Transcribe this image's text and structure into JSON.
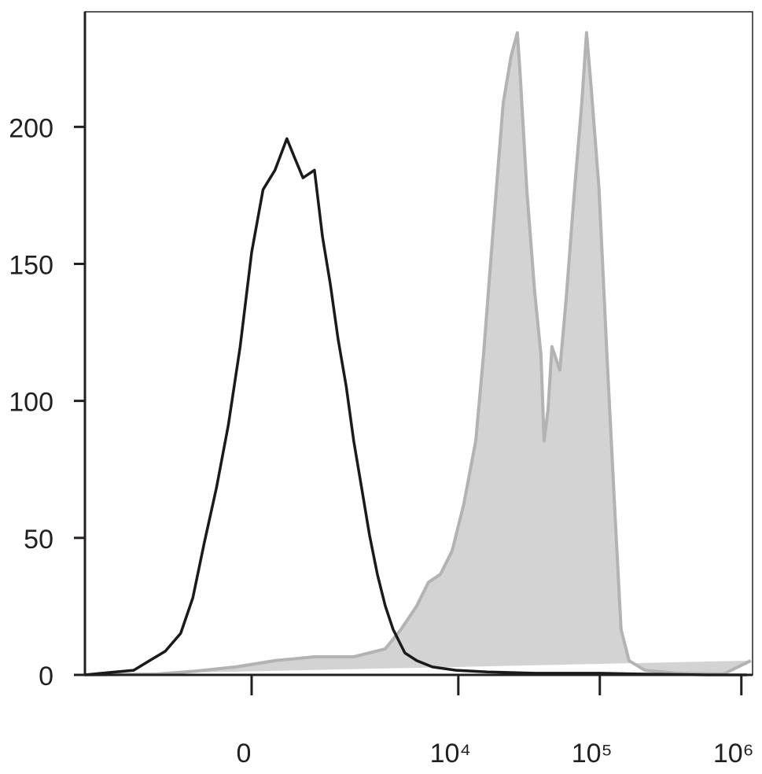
{
  "chart_data": {
    "type": "line",
    "xscale": "biexponential",
    "xlim": [
      -5200,
      1200000
    ],
    "xticks": [
      0,
      {
        "value": 10000,
        "label": "10⁴"
      },
      {
        "value": 100000,
        "label": "10⁵"
      },
      {
        "value": 1000000,
        "label": "10⁶"
      }
    ],
    "ylim": [
      0,
      242
    ],
    "yticks": [
      0,
      50,
      100,
      150,
      200
    ],
    "series": [
      {
        "color": "#b3b3b3",
        "fill": "#d3d3d3",
        "x": [
          -5200,
          -1540,
          -710,
          -180,
          270,
          840,
          1760,
          3010,
          3910,
          5070,
          6140,
          7460,
          9040,
          10950,
          13280,
          15090,
          17140,
          18750,
          20770,
          23600,
          26160,
          27520,
          30500,
          34660,
          38380,
          40390,
          43060,
          45910,
          52190,
          57780,
          65650,
          74610,
          80600,
          86980,
          98850,
          112350,
          127700,
          141400,
          160800,
          207700,
          346200,
          746300,
          1166700
        ],
        "values": [
          0,
          0.3,
          1.4,
          2.9,
          5.2,
          6.6,
          6.6,
          9.5,
          16.6,
          25.2,
          33.8,
          36.7,
          45.3,
          62.5,
          85.4,
          116.9,
          154.2,
          179.9,
          208.6,
          225.8,
          234.4,
          217.2,
          177.1,
          139.8,
          116.9,
          85.4,
          96.8,
          119.8,
          111.2,
          137,
          174.2,
          208.6,
          234.4,
          214.3,
          177.1,
          116.9,
          59.6,
          16.6,
          5.2,
          1.7,
          0.6,
          0.3,
          5.2
        ]
      },
      {
        "color": "#1a1a1a",
        "x": [
          -5200,
          -3430,
          -2310,
          -1760,
          -1330,
          -990,
          -770,
          -590,
          -420,
          -270,
          -130,
          0,
          130,
          270,
          420,
          530,
          650,
          840,
          990,
          1150,
          1330,
          1540,
          1760,
          2020,
          2310,
          2640,
          3010,
          3430,
          4170,
          5070,
          6550,
          9630,
          16090,
          34660,
          98850,
          207700,
          577700,
          1094800
        ],
        "values": [
          0,
          0.9,
          1.7,
          5.2,
          8.6,
          15.2,
          28.1,
          48.1,
          68.2,
          91.1,
          119.8,
          154.2,
          177.1,
          184.2,
          195.7,
          188.5,
          181.4,
          184.2,
          159.9,
          142.7,
          122.6,
          105.4,
          85.4,
          68.2,
          51,
          36.7,
          25.2,
          16.6,
          8,
          5.2,
          2.9,
          1.7,
          1.1,
          0.6,
          0.6,
          0.3,
          0,
          0
        ]
      }
    ]
  }
}
